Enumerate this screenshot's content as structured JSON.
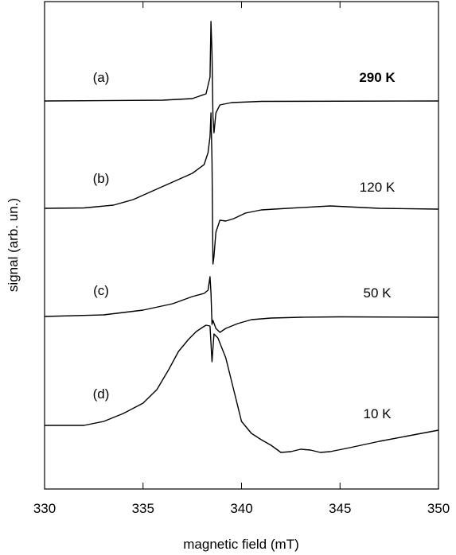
{
  "chart_data": {
    "type": "line",
    "title": "",
    "xlabel": "magnetic field (mT)",
    "ylabel": "signal (arb. un.)",
    "xlim": [
      330,
      350
    ],
    "xticks": [
      330,
      335,
      340,
      345,
      350
    ],
    "xtick_labels": [
      "330",
      "335",
      "340",
      "345",
      "350"
    ],
    "yticks": [],
    "grid": false,
    "legend": "none",
    "line_color": "#000000",
    "series": [
      {
        "label": "(a)",
        "temperature": "290 K",
        "temperature_bold": true,
        "baseline": 0,
        "points": [
          [
            330,
            0
          ],
          [
            336,
            0.1
          ],
          [
            337.5,
            0.3
          ],
          [
            338.2,
            0.9
          ],
          [
            338.4,
            3
          ],
          [
            338.45,
            10
          ],
          [
            338.5,
            6
          ],
          [
            338.55,
            -2
          ],
          [
            338.6,
            -4
          ],
          [
            338.7,
            -1.5
          ],
          [
            338.9,
            -0.5
          ],
          [
            339.5,
            -0.2
          ],
          [
            341,
            -0.05
          ],
          [
            350,
            0
          ]
        ]
      },
      {
        "label": "(b)",
        "temperature": "120 K",
        "temperature_bold": false,
        "baseline": 0,
        "points": [
          [
            330,
            0
          ],
          [
            332,
            0.05
          ],
          [
            333.5,
            0.4
          ],
          [
            334.5,
            1.1
          ],
          [
            335.5,
            2.2
          ],
          [
            336.5,
            3.3
          ],
          [
            337.5,
            4.4
          ],
          [
            338.1,
            5.5
          ],
          [
            338.3,
            7
          ],
          [
            338.4,
            9
          ],
          [
            338.45,
            12
          ],
          [
            338.5,
            6
          ],
          [
            338.55,
            -7
          ],
          [
            338.6,
            -6
          ],
          [
            338.7,
            -3
          ],
          [
            338.9,
            -1.5
          ],
          [
            339.2,
            -1.6
          ],
          [
            339.6,
            -1.3
          ],
          [
            340.2,
            -0.6
          ],
          [
            341,
            -0.2
          ],
          [
            342,
            -0.05
          ],
          [
            344.5,
            0.3
          ],
          [
            347,
            0
          ],
          [
            350,
            -0.1
          ]
        ]
      },
      {
        "label": "(c)",
        "temperature": "50 K",
        "temperature_bold": false,
        "baseline": 0,
        "points": [
          [
            330,
            0
          ],
          [
            333,
            0.2
          ],
          [
            335,
            0.8
          ],
          [
            336.5,
            1.6
          ],
          [
            337.5,
            2.5
          ],
          [
            338.1,
            2.9
          ],
          [
            338.3,
            3.3
          ],
          [
            338.4,
            5
          ],
          [
            338.45,
            3
          ],
          [
            338.5,
            -1
          ],
          [
            338.55,
            -0.5
          ],
          [
            338.7,
            -1.5
          ],
          [
            338.9,
            -2
          ],
          [
            339.2,
            -1.5
          ],
          [
            339.8,
            -0.9
          ],
          [
            340.5,
            -0.4
          ],
          [
            341.5,
            -0.2
          ],
          [
            343,
            -0.1
          ],
          [
            345,
            -0.05
          ],
          [
            350,
            -0.1
          ]
        ]
      },
      {
        "label": "(d)",
        "temperature": "10 K",
        "temperature_bold": false,
        "baseline": 0,
        "points": [
          [
            330,
            0
          ],
          [
            332,
            0
          ],
          [
            333,
            0.5
          ],
          [
            334,
            1.5
          ],
          [
            335,
            2.8
          ],
          [
            335.7,
            4.5
          ],
          [
            336.3,
            7
          ],
          [
            336.8,
            9.3
          ],
          [
            337.3,
            10.8
          ],
          [
            337.7,
            11.8
          ],
          [
            338,
            12.3
          ],
          [
            338.2,
            12.6
          ],
          [
            338.4,
            12.5
          ],
          [
            338.5,
            8
          ],
          [
            338.6,
            11.5
          ],
          [
            338.8,
            11
          ],
          [
            339.2,
            8.5
          ],
          [
            339.6,
            4.5
          ],
          [
            340,
            0.5
          ],
          [
            340.5,
            -1
          ],
          [
            341,
            -1.8
          ],
          [
            341.5,
            -2.5
          ],
          [
            342,
            -3.4
          ],
          [
            342.5,
            -3.3
          ],
          [
            343,
            -3
          ],
          [
            343.5,
            -3.1
          ],
          [
            344,
            -3.4
          ],
          [
            344.5,
            -3.3
          ],
          [
            345.5,
            -2.8
          ],
          [
            347,
            -2
          ],
          [
            348.5,
            -1.3
          ],
          [
            350,
            -0.6
          ]
        ]
      }
    ],
    "annotations": [
      {
        "text": "(a)"
      },
      {
        "text": "290 K"
      },
      {
        "text": "(b)"
      },
      {
        "text": "120 K"
      },
      {
        "text": "(c)"
      },
      {
        "text": "50 K"
      },
      {
        "text": "(d)"
      },
      {
        "text": "10 K"
      }
    ]
  }
}
